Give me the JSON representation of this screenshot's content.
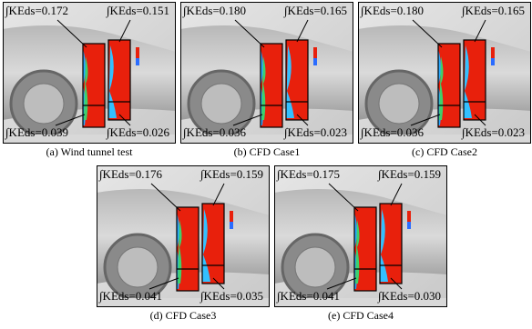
{
  "panels": [
    {
      "top_left": "∫KEds=0.172",
      "top_right": "∫KEds=0.151",
      "bottom_left": "∫KEds=0.039",
      "bottom_right": "∫KEds=0.026",
      "caption": "(a) Wind tunnel test"
    },
    {
      "top_left": "∫KEds=0.180",
      "top_right": "∫KEds=0.165",
      "bottom_left": "∫KEds=0.036",
      "bottom_right": "∫KEds=0.023",
      "caption": "(b) CFD Case1"
    },
    {
      "top_left": "∫KEds=0.180",
      "top_right": "∫KEds=0.165",
      "bottom_left": "∫KEds=0.036",
      "bottom_right": "∫KEds=0.023",
      "caption": "(c) CFD Case2"
    },
    {
      "top_left": "∫KEds=0.176",
      "top_right": "∫KEds=0.159",
      "bottom_left": "∫KEds=0.041",
      "bottom_right": "∫KEds=0.035",
      "caption": "(d) CFD Case3"
    },
    {
      "top_left": "∫KEds=0.175",
      "top_right": "∫KEds=0.159",
      "bottom_left": "∫KEds=0.041",
      "bottom_right": "∫KEds=0.030",
      "caption": "(e) CFD Case4"
    }
  ]
}
